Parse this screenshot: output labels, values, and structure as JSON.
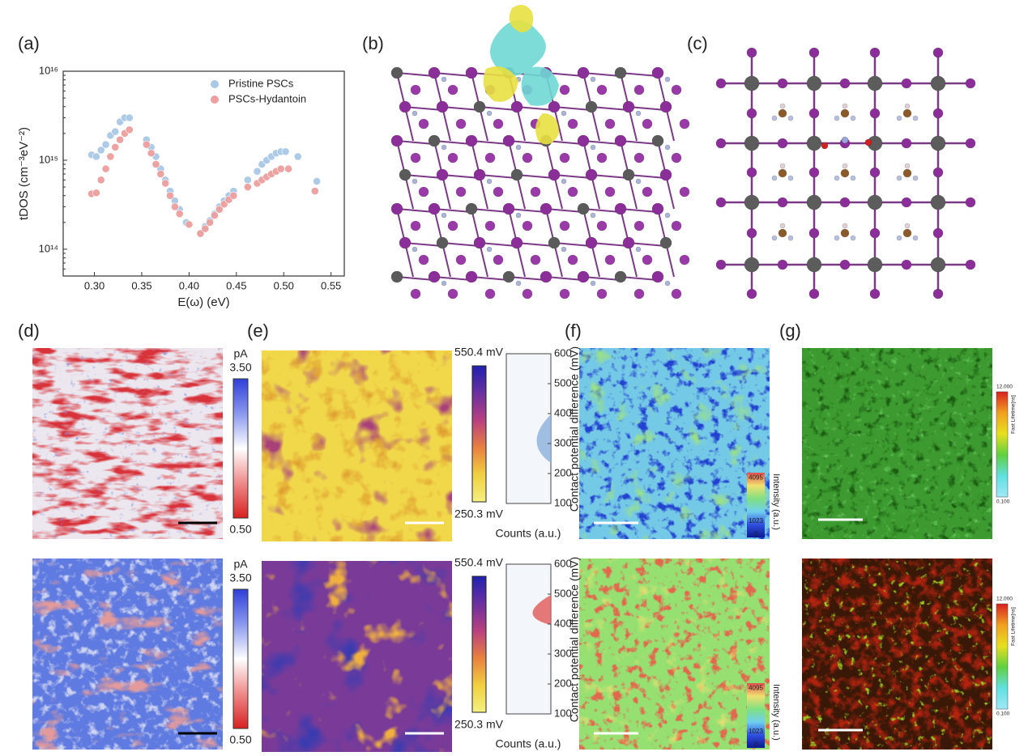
{
  "chart_data": {
    "type": "scatter",
    "panel_label": "(a)",
    "xlabel": "E(ω) (eV)",
    "ylabel": "tDOS (cm⁻³eV⁻²)",
    "xlim": [
      0.267,
      0.564
    ],
    "xticks": [
      {
        "value": 0.3,
        "label": "0.30"
      },
      0.35,
      {
        "value": 0.4,
        "label": "0.40"
      },
      0.45,
      {
        "value": 0.5,
        "label": "0.50"
      },
      0.55
    ],
    "ylim": [
      50000000000000.0,
      1e+16
    ],
    "log_y": true,
    "yticks": [
      {
        "value": 100000000000000.0,
        "label": "10¹⁴"
      },
      {
        "value": 1000000000000000.0,
        "label": "10¹⁵"
      },
      {
        "value": 1e+16,
        "label": "10¹⁶"
      }
    ],
    "legend": "upper right",
    "series": [
      {
        "name": "Pristine PSCs",
        "color": "#a9c9e6",
        "x": [
          0.297,
          0.302,
          0.307,
          0.312,
          0.317,
          0.322,
          0.327,
          0.332,
          0.337,
          0.355,
          0.36,
          0.365,
          0.37,
          0.375,
          0.38,
          0.385,
          0.39,
          0.397,
          0.412,
          0.417,
          0.422,
          0.427,
          0.432,
          0.437,
          0.442,
          0.447,
          0.462,
          0.472,
          0.477,
          0.482,
          0.487,
          0.492,
          0.497,
          0.502,
          0.515,
          0.535
        ],
        "values": [
          1150000000000000.0,
          1100000000000000.0,
          1300000000000000.0,
          1500000000000000.0,
          1900000000000000.0,
          2100000000000000.0,
          2700000000000000.0,
          3000000000000000.0,
          3000000000000000.0,
          1700000000000000.0,
          1400000000000000.0,
          1100000000000000.0,
          800000000000000.0,
          600000000000000.0,
          450000000000000.0,
          350000000000000.0,
          280000000000000.0,
          200000000000000.0,
          150000000000000.0,
          180000000000000.0,
          210000000000000.0,
          250000000000000.0,
          300000000000000.0,
          350000000000000.0,
          400000000000000.0,
          450000000000000.0,
          600000000000000.0,
          750000000000000.0,
          900000000000000.0,
          1000000000000000.0,
          1100000000000000.0,
          1200000000000000.0,
          1250000000000000.0,
          1250000000000000.0,
          1100000000000000.0,
          580000000000000.0
        ]
      },
      {
        "name": "PSCs-Hydantoin",
        "color": "#ee9f9f",
        "x": [
          0.297,
          0.302,
          0.307,
          0.312,
          0.317,
          0.322,
          0.327,
          0.332,
          0.337,
          0.355,
          0.36,
          0.365,
          0.37,
          0.375,
          0.38,
          0.385,
          0.39,
          0.4,
          0.412,
          0.417,
          0.422,
          0.427,
          0.432,
          0.437,
          0.442,
          0.447,
          0.462,
          0.472,
          0.477,
          0.482,
          0.487,
          0.492,
          0.497,
          0.505,
          0.533
        ],
        "values": [
          420000000000000.0,
          430000000000000.0,
          600000000000000.0,
          800000000000000.0,
          1100000000000000.0,
          1400000000000000.0,
          1700000000000000.0,
          2000000000000000.0,
          2200000000000000.0,
          1500000000000000.0,
          1200000000000000.0,
          900000000000000.0,
          700000000000000.0,
          550000000000000.0,
          400000000000000.0,
          300000000000000.0,
          250000000000000.0,
          190000000000000.0,
          150000000000000.0,
          170000000000000.0,
          200000000000000.0,
          240000000000000.0,
          280000000000000.0,
          320000000000000.0,
          360000000000000.0,
          400000000000000.0,
          500000000000000.0,
          550000000000000.0,
          600000000000000.0,
          650000000000000.0,
          700000000000000.0,
          750000000000000.0,
          800000000000000.0,
          800000000000000.0,
          450000000000000.0
        ]
      }
    ]
  },
  "panels": {
    "b": {
      "label": "(b)"
    },
    "c": {
      "label": "(c)"
    },
    "d": {
      "label": "(d)",
      "colorbars": [
        {
          "unit": "pA",
          "max": "3.50",
          "min": "0.50"
        },
        {
          "unit": "pA",
          "max": "3.50",
          "min": "0.50"
        }
      ]
    },
    "e": {
      "label": "(e)",
      "colorbars": [
        {
          "max": "550.4 mV",
          "min": "250.3 mV"
        },
        {
          "max": "550.4 mV",
          "min": "250.3 mV"
        }
      ],
      "histograms": [
        {
          "ylabel": "Contact potential difference (mV)",
          "yticks": [
            100,
            200,
            300,
            400,
            500,
            600
          ],
          "xlabel": "Counts (a.u.)"
        },
        {
          "ylabel": "Contact potential difference (mV)",
          "yticks": [
            100,
            200,
            300,
            400,
            500,
            600
          ],
          "xlabel": "Counts (a.u.)"
        }
      ]
    },
    "f": {
      "label": "(f)",
      "colorbars": [
        {
          "title": "Intensity (a.u.)",
          "ticks": [
            "4095",
            "1023",
            "0"
          ]
        },
        {
          "title": "Intensity (a.u.)",
          "ticks": [
            "4095",
            "1023",
            "0"
          ]
        }
      ]
    },
    "g": {
      "label": "(g)",
      "colorbars": [
        {
          "max": "12.000",
          "title": "Fast Lifetime[ns]",
          "min": "0.100"
        },
        {
          "max": "12.000",
          "title": "Fast Lifetime[ns]",
          "min": "0.100"
        }
      ]
    }
  }
}
